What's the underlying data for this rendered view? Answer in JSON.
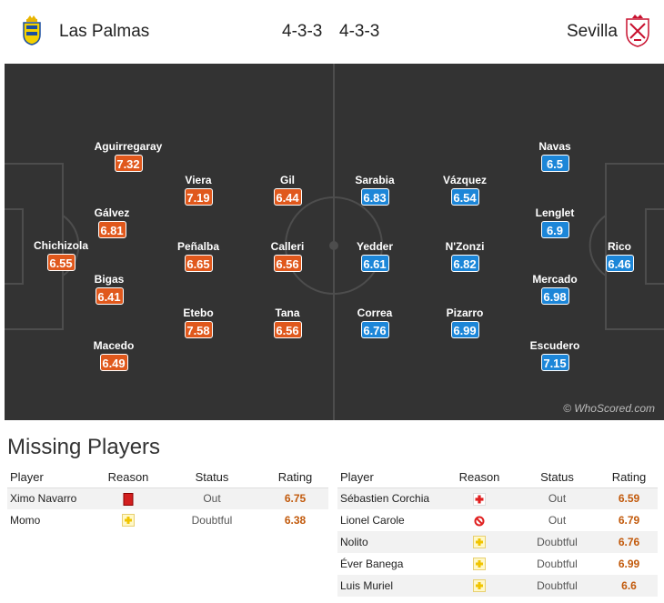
{
  "header": {
    "home_team": "Las Palmas",
    "away_team": "Sevilla",
    "home_formation": "4-3-3",
    "away_formation": "4-3-3"
  },
  "pitch": {
    "watermark": "© WhoScored.com",
    "home_players": [
      {
        "name": "Chichizola",
        "rating": "6.55"
      },
      {
        "name": "Aguirregaray",
        "rating": "7.32"
      },
      {
        "name": "Gálvez",
        "rating": "6.81"
      },
      {
        "name": "Bigas",
        "rating": "6.41"
      },
      {
        "name": "Macedo",
        "rating": "6.49"
      },
      {
        "name": "Viera",
        "rating": "7.19"
      },
      {
        "name": "Peñalba",
        "rating": "6.65"
      },
      {
        "name": "Etebo",
        "rating": "7.58"
      },
      {
        "name": "Gil",
        "rating": "6.44"
      },
      {
        "name": "Calleri",
        "rating": "6.56"
      },
      {
        "name": "Tana",
        "rating": "6.56"
      }
    ],
    "away_players": [
      {
        "name": "Sarabia",
        "rating": "6.83"
      },
      {
        "name": "Yedder",
        "rating": "6.61"
      },
      {
        "name": "Correa",
        "rating": "6.76"
      },
      {
        "name": "Vázquez",
        "rating": "6.54"
      },
      {
        "name": "N'Zonzi",
        "rating": "6.82"
      },
      {
        "name": "Pizarro",
        "rating": "6.99"
      },
      {
        "name": "Navas",
        "rating": "6.5"
      },
      {
        "name": "Lenglet",
        "rating": "6.9"
      },
      {
        "name": "Mercado",
        "rating": "6.98"
      },
      {
        "name": "Escudero",
        "rating": "7.15"
      },
      {
        "name": "Rico",
        "rating": "6.46"
      }
    ]
  },
  "missing": {
    "title": "Missing Players",
    "columns": {
      "player": "Player",
      "reason": "Reason",
      "status": "Status",
      "rating": "Rating"
    },
    "home": [
      {
        "player": "Ximo Navarro",
        "reason": "red-card",
        "status": "Out",
        "rating": "6.75"
      },
      {
        "player": "Momo",
        "reason": "doubtful",
        "status": "Doubtful",
        "rating": "6.38"
      }
    ],
    "away": [
      {
        "player": "Sébastien Corchia",
        "reason": "injury",
        "status": "Out",
        "rating": "6.59"
      },
      {
        "player": "Lionel Carole",
        "reason": "banned",
        "status": "Out",
        "rating": "6.79"
      },
      {
        "player": "Nolito",
        "reason": "doubtful",
        "status": "Doubtful",
        "rating": "6.76"
      },
      {
        "player": "Éver Banega",
        "reason": "doubtful",
        "status": "Doubtful",
        "rating": "6.99"
      },
      {
        "player": "Luis Muriel",
        "reason": "doubtful",
        "status": "Doubtful",
        "rating": "6.6"
      }
    ]
  },
  "colors": {
    "home_rating": "#e0581c",
    "away_rating": "#1c86d8",
    "pitch": "#333333",
    "rating_text": "#c25a0c"
  }
}
